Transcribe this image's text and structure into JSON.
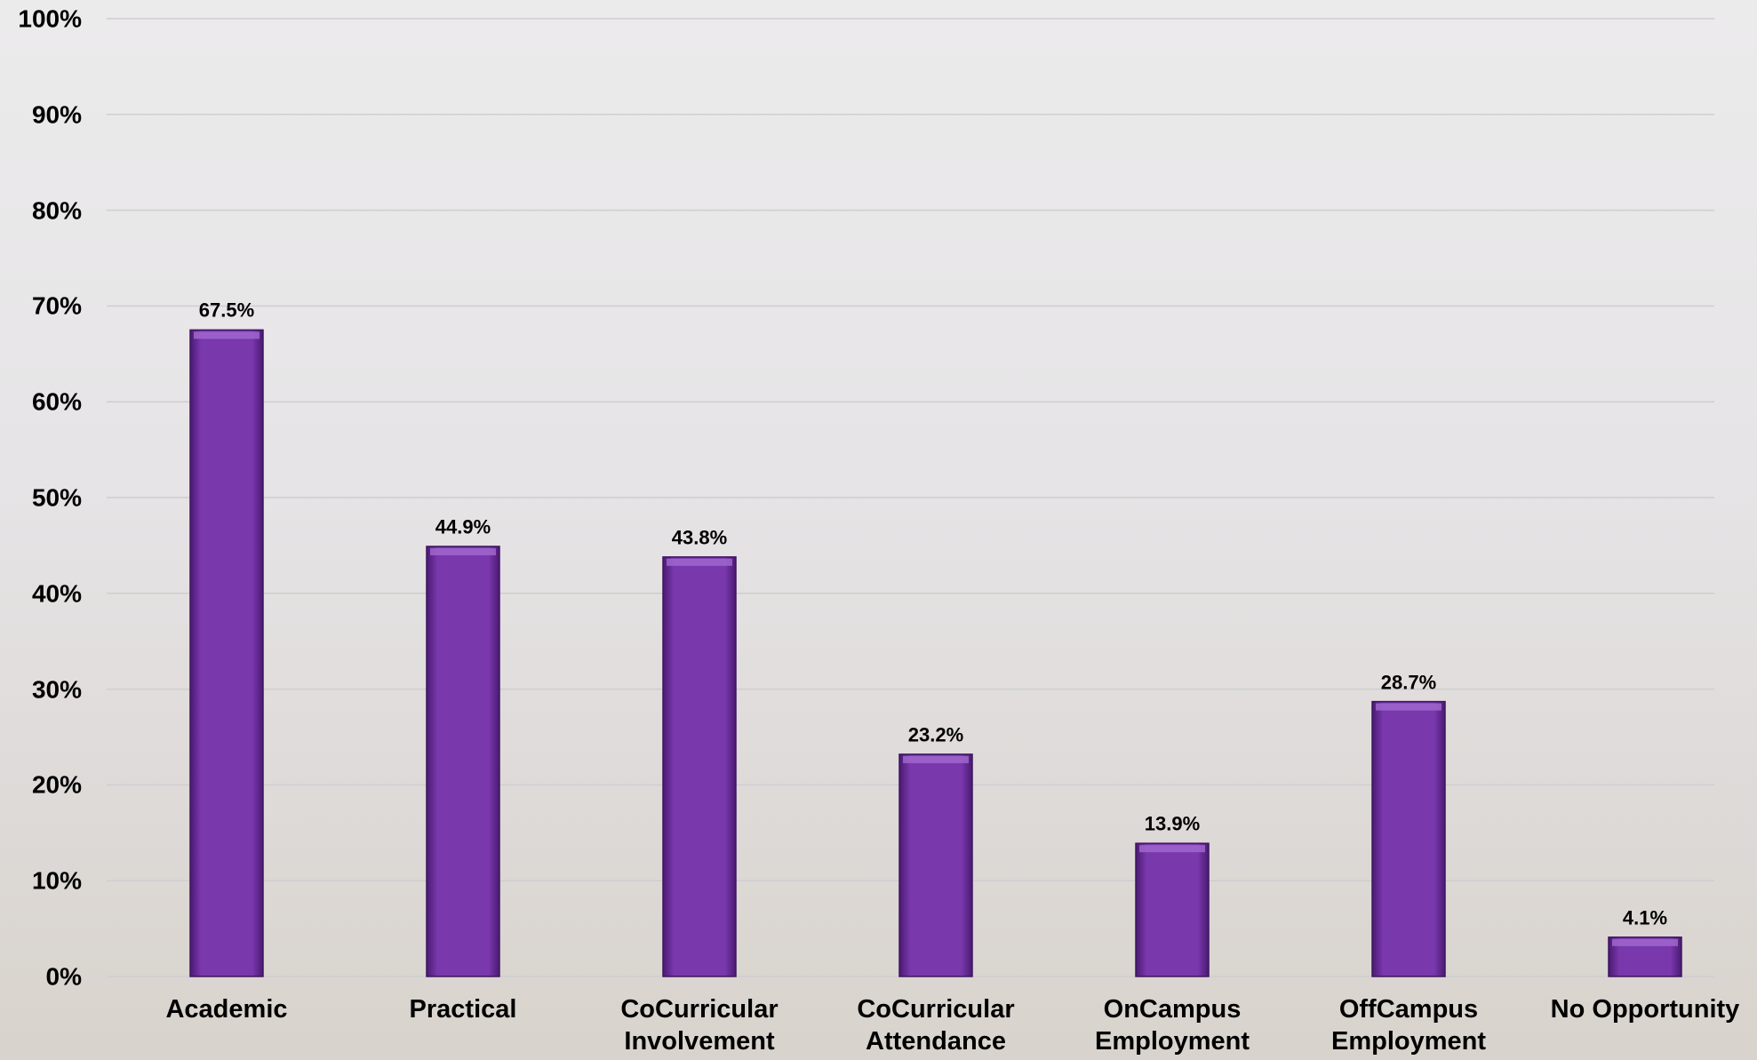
{
  "chart_data": {
    "type": "bar",
    "categories": [
      "Academic",
      "Practical",
      "CoCurricular Involvement",
      "CoCurricular Attendance",
      "OnCampus Employment",
      "OffCampus Employment",
      "No Opportunity"
    ],
    "values": [
      67.5,
      44.9,
      43.8,
      23.2,
      13.9,
      28.7,
      4.1
    ],
    "value_labels": [
      "67.5%",
      "44.9%",
      "43.8%",
      "23.2%",
      "13.9%",
      "28.7%",
      "4.1%"
    ],
    "color": "#7030a0",
    "ylim": [
      0,
      100
    ],
    "yticks": [
      {
        "value": 0,
        "label": "0%"
      },
      {
        "value": 10,
        "label": "10%"
      },
      {
        "value": 20,
        "label": "20%"
      },
      {
        "value": 30,
        "label": "30%"
      },
      {
        "value": 40,
        "label": "40%"
      },
      {
        "value": 50,
        "label": "50%"
      },
      {
        "value": 60,
        "label": "60%"
      },
      {
        "value": 70,
        "label": "70%"
      },
      {
        "value": 80,
        "label": "80%"
      },
      {
        "value": 90,
        "label": "90%"
      },
      {
        "value": 100,
        "label": "100%"
      }
    ],
    "grid": true
  }
}
